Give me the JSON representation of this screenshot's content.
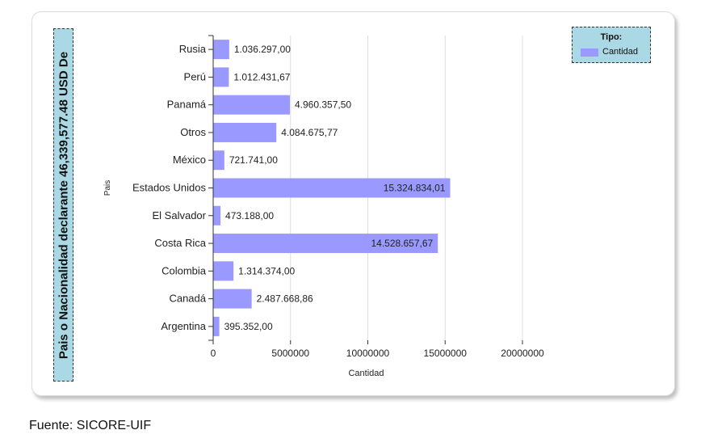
{
  "chart_data": {
    "type": "bar",
    "orientation": "horizontal",
    "title": "Pais o Nacionalidad declarante 46,339,577.48 USD De",
    "xlabel": "Cantidad",
    "ylabel": "Pais",
    "xlim": [
      0,
      20000000
    ],
    "xticks": [
      "0",
      "5000000",
      "10000000",
      "15000000",
      "20000000"
    ],
    "grid": true,
    "legend_title": "Tipo:",
    "legend_placement": "top-right",
    "categories": [
      "Rusia",
      "Perú",
      "Panamá",
      "Otros",
      "México",
      "Estados Unidos",
      "El Salvador",
      "Costa Rica",
      "Colombia",
      "Canadá",
      "Argentina"
    ],
    "series": [
      {
        "name": "Cantidad",
        "color": "#9999ff",
        "values": [
          1036297.0,
          1012431.67,
          4960357.5,
          4084675.77,
          721741.0,
          15324834.01,
          473188.0,
          14528657.67,
          1314374.0,
          2487668.86,
          395352.0
        ],
        "labels": [
          "1.036.297,00",
          "1.012.431,67",
          "4.960.357,50",
          "4.084.675,77",
          "721.741,00",
          "15.324.834,01",
          "473.188,00",
          "14.528.657,67",
          "1.314.374,00",
          "2.487.668,86",
          "395.352,00"
        ]
      }
    ]
  },
  "source": "Fuente: SICORE-UIF"
}
